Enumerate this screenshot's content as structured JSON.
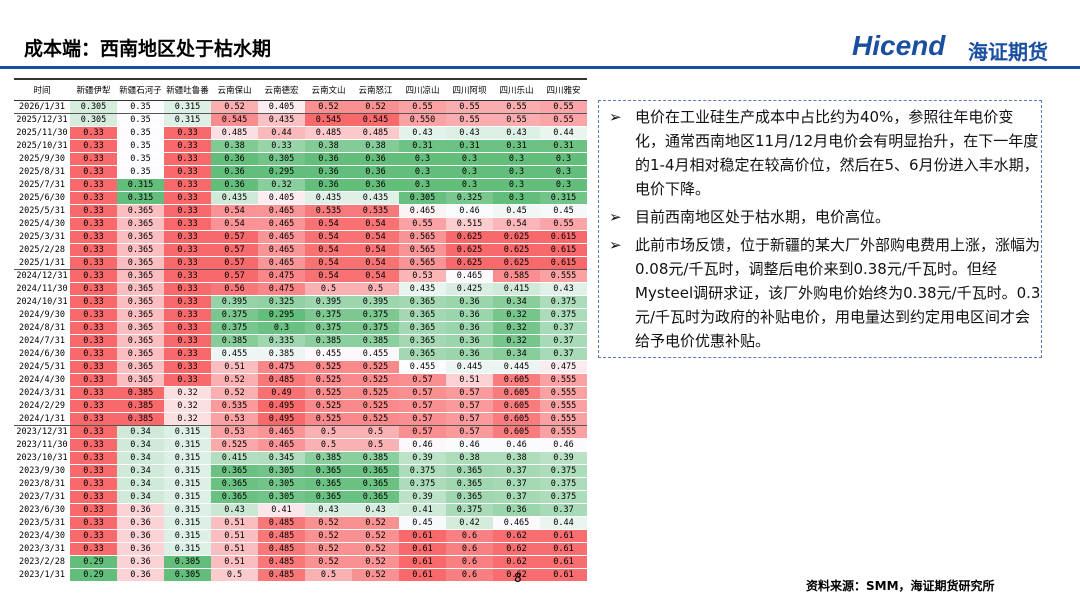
{
  "header": {
    "title": "成本端：西南地区处于枯水期",
    "logo": "Hicend",
    "company": "海证期货"
  },
  "table": {
    "columns": [
      "时间",
      "新疆伊犁",
      "新疆石河子",
      "新疆吐鲁番",
      "云南保山",
      "云南德宏",
      "云南文山",
      "云南怒江",
      "四川凉山",
      "四川阿坝",
      "四川乐山",
      "四川雅安"
    ],
    "rows": [
      [
        "2026/1/31",
        "0.305",
        "0.35",
        "0.315",
        "0.52",
        "0.405",
        "0.52",
        "0.52",
        "0.55",
        "0.55",
        "0.55",
        "0.55"
      ],
      [
        "2025/12/31",
        "0.305",
        "0.35",
        "0.315",
        "0.545",
        "0.435",
        "0.545",
        "0.545",
        "0.550",
        "0.55",
        "0.55",
        "0.55"
      ],
      [
        "2025/11/30",
        "0.33",
        "0.35",
        "0.33",
        "0.485",
        "0.44",
        "0.485",
        "0.485",
        "0.43",
        "0.43",
        "0.43",
        "0.44"
      ],
      [
        "2025/10/31",
        "0.33",
        "0.35",
        "0.33",
        "0.38",
        "0.33",
        "0.38",
        "0.38",
        "0.31",
        "0.31",
        "0.31",
        "0.31"
      ],
      [
        "2025/9/30",
        "0.33",
        "0.35",
        "0.33",
        "0.36",
        "0.305",
        "0.36",
        "0.36",
        "0.3",
        "0.3",
        "0.3",
        "0.3"
      ],
      [
        "2025/8/31",
        "0.33",
        "0.35",
        "0.33",
        "0.36",
        "0.295",
        "0.36",
        "0.36",
        "0.3",
        "0.3",
        "0.3",
        "0.3"
      ],
      [
        "2025/7/31",
        "0.33",
        "0.315",
        "0.33",
        "0.36",
        "0.32",
        "0.36",
        "0.36",
        "0.3",
        "0.3",
        "0.3",
        "0.3"
      ],
      [
        "2025/6/30",
        "0.33",
        "0.315",
        "0.33",
        "0.435",
        "0.405",
        "0.435",
        "0.435",
        "0.305",
        "0.325",
        "0.3",
        "0.315"
      ],
      [
        "2025/5/31",
        "0.33",
        "0.365",
        "0.33",
        "0.54",
        "0.465",
        "0.535",
        "0.535",
        "0.465",
        "0.46",
        "0.45",
        "0.45"
      ],
      [
        "2025/4/30",
        "0.33",
        "0.365",
        "0.33",
        "0.54",
        "0.465",
        "0.54",
        "0.54",
        "0.55",
        "0.515",
        "0.54",
        "0.55"
      ],
      [
        "2025/3/31",
        "0.33",
        "0.365",
        "0.33",
        "0.57",
        "0.465",
        "0.54",
        "0.54",
        "0.565",
        "0.625",
        "0.625",
        "0.615"
      ],
      [
        "2025/2/28",
        "0.33",
        "0.365",
        "0.33",
        "0.57",
        "0.465",
        "0.54",
        "0.54",
        "0.565",
        "0.625",
        "0.625",
        "0.615"
      ],
      [
        "2025/1/31",
        "0.33",
        "0.365",
        "0.33",
        "0.57",
        "0.465",
        "0.54",
        "0.54",
        "0.565",
        "0.625",
        "0.625",
        "0.615"
      ],
      [
        "2024/12/31",
        "0.33",
        "0.365",
        "0.33",
        "0.57",
        "0.475",
        "0.54",
        "0.54",
        "0.53",
        "0.465",
        "0.585",
        "0.555"
      ],
      [
        "2024/11/30",
        "0.33",
        "0.365",
        "0.33",
        "0.56",
        "0.475",
        "0.5",
        "0.5",
        "0.435",
        "0.425",
        "0.415",
        "0.43"
      ],
      [
        "2024/10/31",
        "0.33",
        "0.365",
        "0.33",
        "0.395",
        "0.325",
        "0.395",
        "0.395",
        "0.365",
        "0.36",
        "0.34",
        "0.375"
      ],
      [
        "2024/9/30",
        "0.33",
        "0.365",
        "0.33",
        "0.375",
        "0.295",
        "0.375",
        "0.375",
        "0.365",
        "0.36",
        "0.32",
        "0.375"
      ],
      [
        "2024/8/31",
        "0.33",
        "0.365",
        "0.33",
        "0.375",
        "0.3",
        "0.375",
        "0.375",
        "0.365",
        "0.36",
        "0.32",
        "0.37"
      ],
      [
        "2024/7/31",
        "0.33",
        "0.365",
        "0.33",
        "0.385",
        "0.335",
        "0.385",
        "0.385",
        "0.365",
        "0.36",
        "0.32",
        "0.37"
      ],
      [
        "2024/6/30",
        "0.33",
        "0.365",
        "0.33",
        "0.455",
        "0.385",
        "0.455",
        "0.455",
        "0.365",
        "0.36",
        "0.34",
        "0.37"
      ],
      [
        "2024/5/31",
        "0.33",
        "0.365",
        "0.33",
        "0.51",
        "0.475",
        "0.525",
        "0.525",
        "0.455",
        "0.445",
        "0.445",
        "0.475"
      ],
      [
        "2024/4/30",
        "0.33",
        "0.365",
        "0.33",
        "0.52",
        "0.485",
        "0.525",
        "0.525",
        "0.57",
        "0.51",
        "0.605",
        "0.555"
      ],
      [
        "2024/3/31",
        "0.33",
        "0.385",
        "0.32",
        "0.52",
        "0.49",
        "0.525",
        "0.525",
        "0.57",
        "0.57",
        "0.605",
        "0.555"
      ],
      [
        "2024/2/29",
        "0.33",
        "0.385",
        "0.32",
        "0.535",
        "0.495",
        "0.525",
        "0.525",
        "0.57",
        "0.57",
        "0.605",
        "0.555"
      ],
      [
        "2024/1/31",
        "0.33",
        "0.385",
        "0.32",
        "0.53",
        "0.495",
        "0.525",
        "0.525",
        "0.57",
        "0.57",
        "0.605",
        "0.555"
      ],
      [
        "2023/12/31",
        "0.33",
        "0.34",
        "0.315",
        "0.53",
        "0.465",
        "0.5",
        "0.5",
        "0.57",
        "0.57",
        "0.605",
        "0.555"
      ],
      [
        "2023/11/30",
        "0.33",
        "0.34",
        "0.315",
        "0.525",
        "0.465",
        "0.5",
        "0.5",
        "0.46",
        "0.46",
        "0.46",
        "0.46"
      ],
      [
        "2023/10/31",
        "0.33",
        "0.34",
        "0.315",
        "0.415",
        "0.345",
        "0.385",
        "0.385",
        "0.39",
        "0.38",
        "0.38",
        "0.39"
      ],
      [
        "2023/9/30",
        "0.33",
        "0.34",
        "0.315",
        "0.365",
        "0.305",
        "0.365",
        "0.365",
        "0.375",
        "0.365",
        "0.37",
        "0.375"
      ],
      [
        "2023/8/31",
        "0.33",
        "0.34",
        "0.315",
        "0.365",
        "0.305",
        "0.365",
        "0.365",
        "0.375",
        "0.365",
        "0.37",
        "0.375"
      ],
      [
        "2023/7/31",
        "0.33",
        "0.34",
        "0.315",
        "0.365",
        "0.305",
        "0.365",
        "0.365",
        "0.39",
        "0.365",
        "0.37",
        "0.375"
      ],
      [
        "2023/6/30",
        "0.33",
        "0.36",
        "0.315",
        "0.43",
        "0.41",
        "0.43",
        "0.43",
        "0.41",
        "0.375",
        "0.36",
        "0.37"
      ],
      [
        "2023/5/31",
        "0.33",
        "0.36",
        "0.315",
        "0.51",
        "0.485",
        "0.52",
        "0.52",
        "0.45",
        "0.42",
        "0.465",
        "0.44"
      ],
      [
        "2023/4/30",
        "0.33",
        "0.36",
        "0.315",
        "0.51",
        "0.485",
        "0.52",
        "0.52",
        "0.61",
        "0.6",
        "0.62",
        "0.61"
      ],
      [
        "2023/3/31",
        "0.33",
        "0.36",
        "0.315",
        "0.51",
        "0.485",
        "0.52",
        "0.52",
        "0.61",
        "0.6",
        "0.62",
        "0.61"
      ],
      [
        "2023/2/28",
        "0.29",
        "0.36",
        "0.305",
        "0.51",
        "0.485",
        "0.52",
        "0.52",
        "0.61",
        "0.6",
        "0.62",
        "0.61"
      ],
      [
        "2023/1/31",
        "0.29",
        "0.36",
        "0.305",
        "0.5",
        "0.485",
        "0.5",
        "0.52",
        "0.61",
        "0.6",
        "0.62",
        "0.61"
      ]
    ]
  },
  "notes": {
    "bullets": [
      "电价在工业硅生产成本中占比约为40%，参照往年电价变化，通常西南地区11月/12月电价会有明显抬升，在下一年度的1-4月相对稳定在较高价位，然后在5、6月份进入丰水期，电价下降。",
      "目前西南地区处于枯水期，电价高位。",
      "此前市场反馈，位于新疆的某大厂外部购电费用上涨，涨幅为0.08元/千瓦时，调整后电价来到0.38元/千瓦时。但经Mysteel调研求证，该厂外购电价始终为0.38元/千瓦时。0.3元/千瓦时为政府的补贴电价，用电量达到约定用电区间才会给予电价优惠补贴。"
    ]
  },
  "footer": {
    "page": "8",
    "source": "资料来源：SMM，海证期货研究所"
  }
}
